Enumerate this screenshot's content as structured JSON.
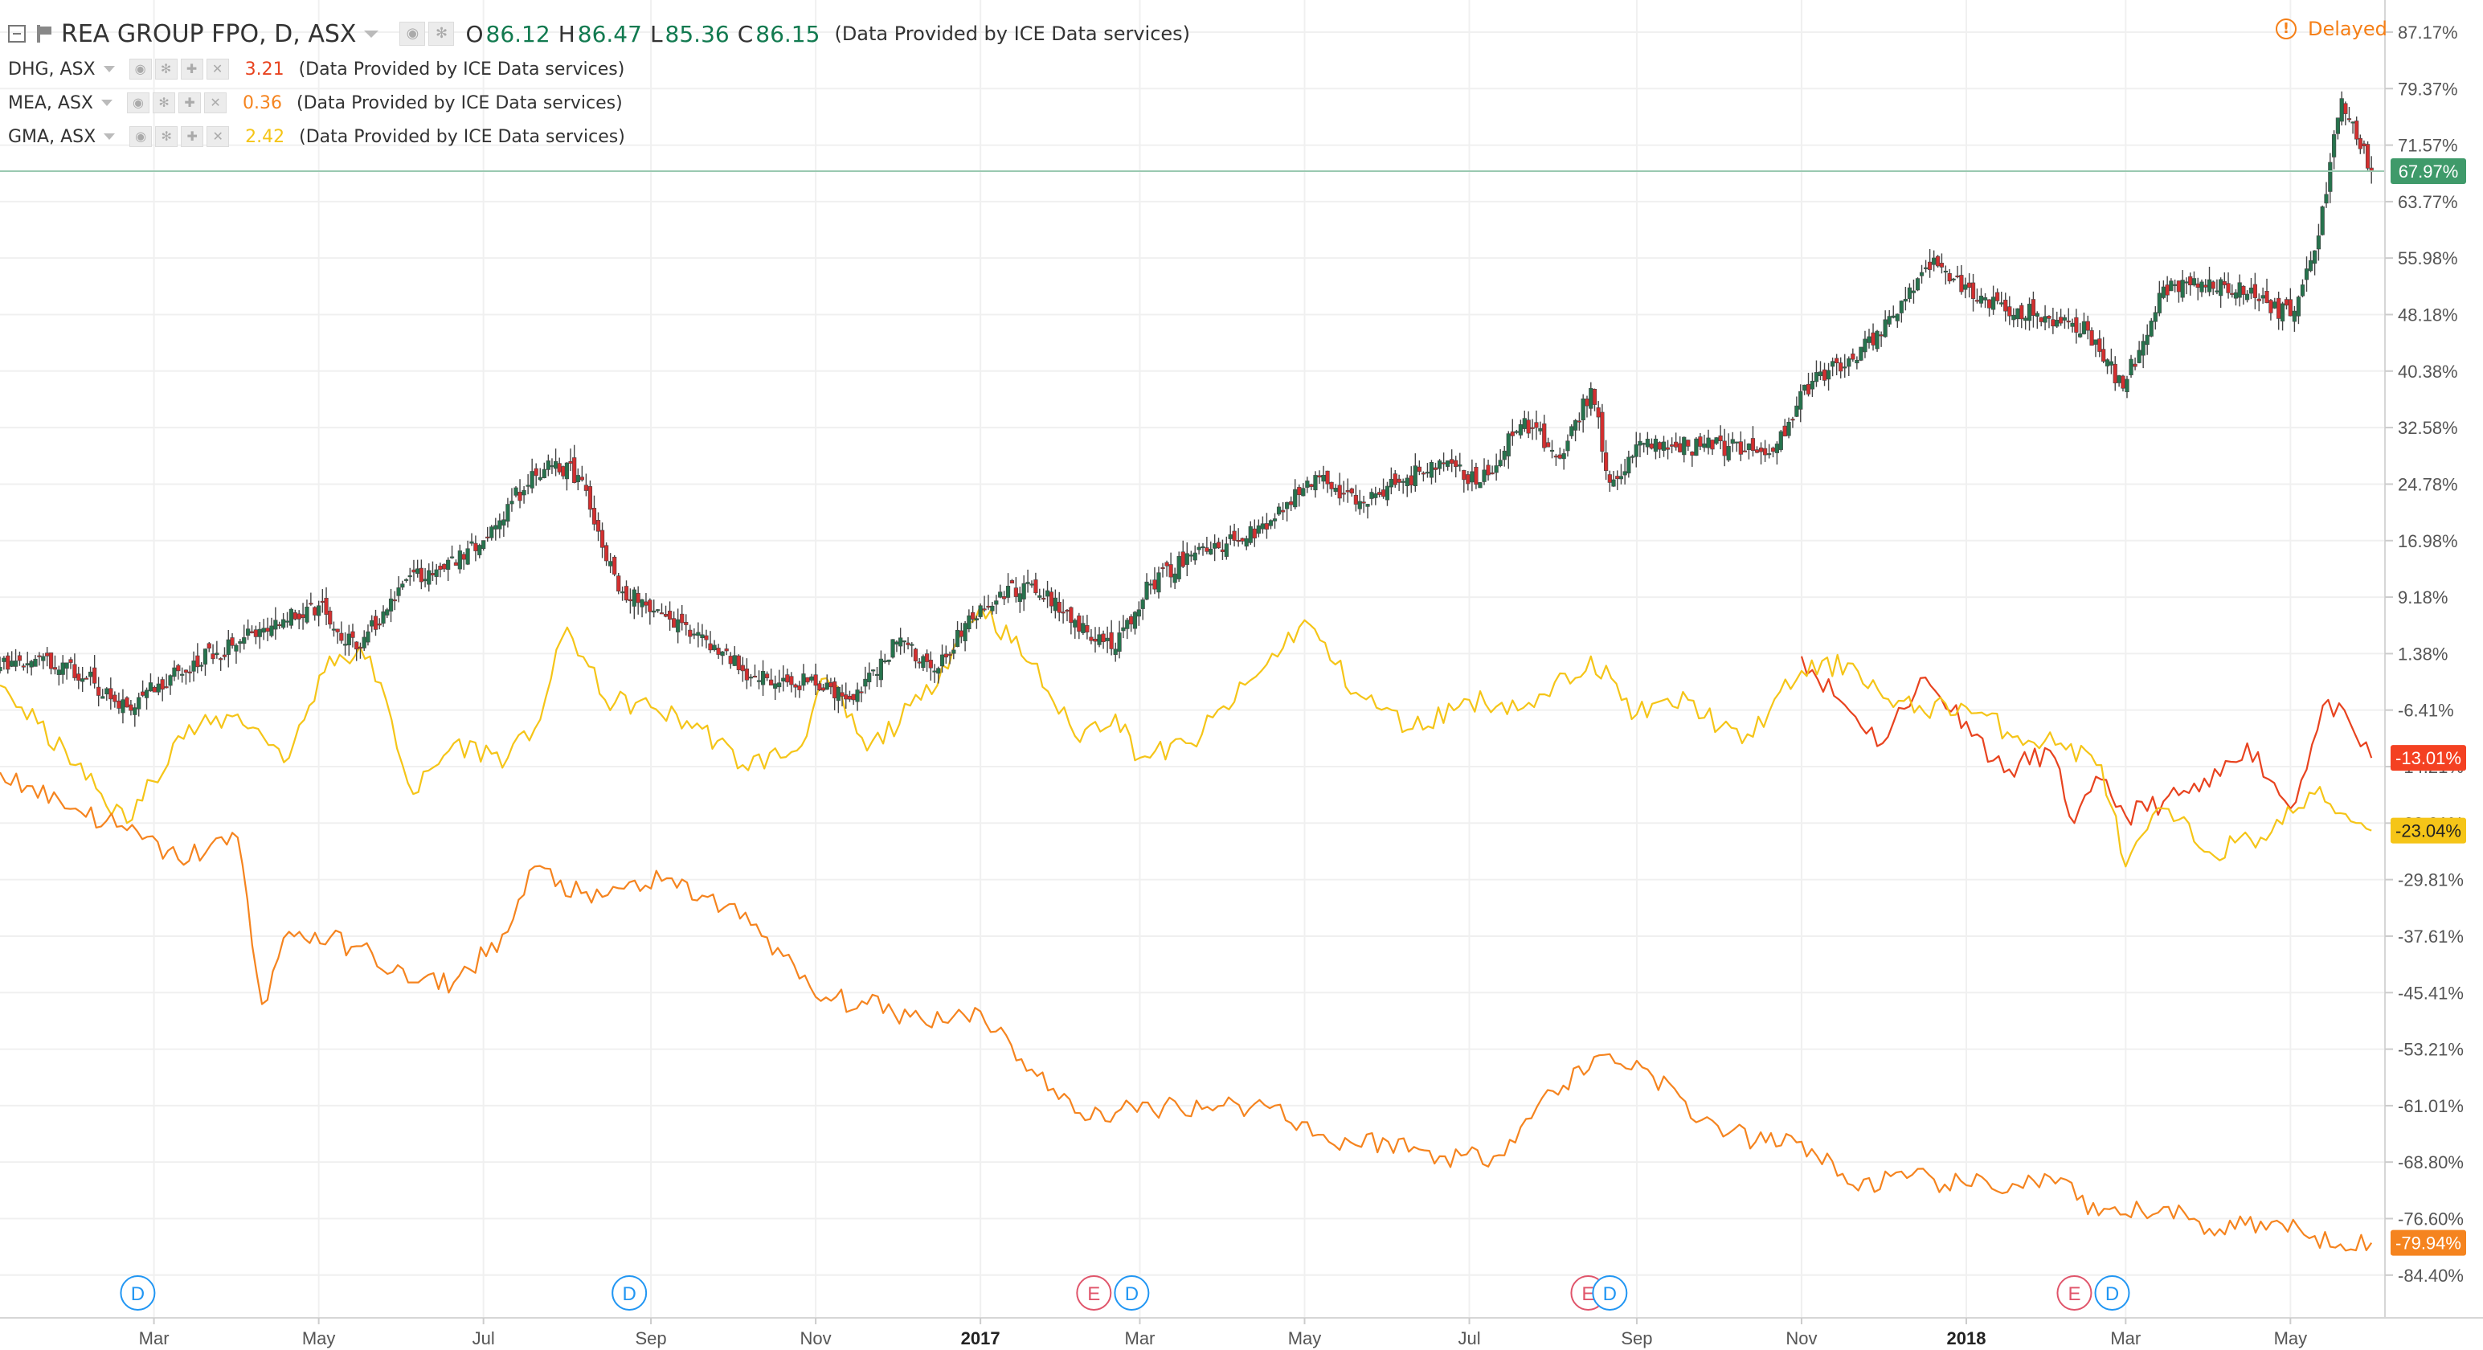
{
  "header": {
    "title": "REA GROUP FPO, D, ASX",
    "ohlc": [
      {
        "label": "O",
        "value": "86.12"
      },
      {
        "label": "H",
        "value": "86.47"
      },
      {
        "label": "L",
        "value": "85.36"
      },
      {
        "label": "C",
        "value": "86.15"
      }
    ],
    "provider": "(Data Provided by ICE Data services)",
    "delayed": "Delayed"
  },
  "comparisons": [
    {
      "name": "DHG, ASX",
      "value": "3.21",
      "color": "#e8431f",
      "provider": "(Data Provided by ICE Data services)"
    },
    {
      "name": "MEA, ASX",
      "value": "0.36",
      "color": "#f5841f",
      "provider": "(Data Provided by ICE Data services)"
    },
    {
      "name": "GMA, ASX",
      "value": "2.42",
      "color": "#f5c518",
      "provider": "(Data Provided by ICE Data services)"
    }
  ],
  "colors": {
    "up": "#26734d",
    "down": "#d32f2f",
    "wick": "#444444",
    "grid": "#f0f0f0",
    "axis_text": "#555555",
    "rea_badge": "#3f9a6a",
    "dividend": "#2196f3",
    "earnings": "#e0556b"
  },
  "chart_data": {
    "type": "line",
    "yaxis_ticks": [
      "87.17%",
      "79.37%",
      "71.57%",
      "63.77%",
      "55.98%",
      "48.18%",
      "40.38%",
      "32.58%",
      "24.78%",
      "16.98%",
      "9.18%",
      "1.38%",
      "-6.41%",
      "-14.21%",
      "-22.01%",
      "-29.81%",
      "-37.61%",
      "-45.41%",
      "-53.21%",
      "-61.01%",
      "-68.80%",
      "-76.60%",
      "-84.40%"
    ],
    "ylim": [
      -90.3,
      91.6
    ],
    "xaxis_ticks": [
      {
        "label": "Mar",
        "date": "2016-03-01"
      },
      {
        "label": "May",
        "date": "2016-05-01"
      },
      {
        "label": "Jul",
        "date": "2016-07-01"
      },
      {
        "label": "Sep",
        "date": "2016-09-01"
      },
      {
        "label": "Nov",
        "date": "2016-11-01"
      },
      {
        "label": "2017",
        "date": "2017-01-01"
      },
      {
        "label": "Mar",
        "date": "2017-03-01"
      },
      {
        "label": "May",
        "date": "2017-05-01"
      },
      {
        "label": "Jul",
        "date": "2017-07-01"
      },
      {
        "label": "Sep",
        "date": "2017-09-01"
      },
      {
        "label": "Nov",
        "date": "2017-11-01"
      },
      {
        "label": "2018",
        "date": "2018-01-01"
      },
      {
        "label": "Mar",
        "date": "2018-03-01"
      },
      {
        "label": "May",
        "date": "2018-05-01"
      }
    ],
    "xlim": [
      "2016-01-04",
      "2018-06-05"
    ],
    "badges": [
      {
        "series": "REA GROUP FPO",
        "text": "67.97%",
        "value": 67.97
      },
      {
        "series": "DHG, ASX",
        "text": "-13.01%",
        "value": -13.01
      },
      {
        "series": "GMA, ASX",
        "text": "-23.04%",
        "value": -23.04
      },
      {
        "series": "MEA, ASX",
        "text": "-79.94%",
        "value": -79.94
      }
    ],
    "events": [
      {
        "type": "dividend",
        "label": "D",
        "date": "2016-02-24"
      },
      {
        "type": "dividend",
        "label": "D",
        "date": "2016-08-24"
      },
      {
        "type": "earnings",
        "label": "E",
        "date": "2017-02-12"
      },
      {
        "type": "dividend",
        "label": "D",
        "date": "2017-02-26"
      },
      {
        "type": "earnings",
        "label": "E",
        "date": "2017-08-14"
      },
      {
        "type": "dividend",
        "label": "D",
        "date": "2017-08-22"
      },
      {
        "type": "earnings",
        "label": "E",
        "date": "2018-02-10"
      },
      {
        "type": "dividend",
        "label": "D",
        "date": "2018-02-24"
      }
    ],
    "series": [
      {
        "name": "REA GROUP FPO",
        "style": "candles",
        "x": [
          "2016-01-04",
          "2016-01-20",
          "2016-02-05",
          "2016-02-20",
          "2016-03-10",
          "2016-03-30",
          "2016-04-15",
          "2016-05-01",
          "2016-05-15",
          "2016-06-01",
          "2016-06-15",
          "2016-07-01",
          "2016-07-10",
          "2016-07-25",
          "2016-08-05",
          "2016-08-20",
          "2016-09-05",
          "2016-09-20",
          "2016-10-05",
          "2016-10-20",
          "2016-11-01",
          "2016-11-15",
          "2016-12-01",
          "2016-12-15",
          "2017-01-01",
          "2017-01-20",
          "2017-02-05",
          "2017-02-20",
          "2017-03-05",
          "2017-03-20",
          "2017-04-05",
          "2017-04-20",
          "2017-05-05",
          "2017-05-20",
          "2017-06-05",
          "2017-06-20",
          "2017-07-05",
          "2017-07-20",
          "2017-08-05",
          "2017-08-15",
          "2017-08-22",
          "2017-09-05",
          "2017-09-20",
          "2017-10-05",
          "2017-10-20",
          "2017-11-05",
          "2017-11-20",
          "2017-12-05",
          "2017-12-20",
          "2018-01-05",
          "2018-01-20",
          "2018-02-05",
          "2018-02-15",
          "2018-02-28",
          "2018-03-15",
          "2018-04-01",
          "2018-04-15",
          "2018-05-01",
          "2018-05-10",
          "2018-05-20",
          "2018-05-31"
        ],
        "y": [
          -0.5,
          1,
          -2,
          -6,
          -1,
          2.5,
          6,
          8,
          2,
          11,
          13,
          17,
          22,
          28,
          26,
          10,
          7,
          4,
          -1,
          -2,
          -3,
          -5,
          3,
          -1,
          8,
          11,
          6,
          2,
          11,
          15,
          17,
          20,
          26,
          22,
          25,
          28,
          25,
          33,
          29,
          38,
          25,
          31,
          30,
          30,
          29,
          39,
          42,
          48,
          56,
          50,
          49,
          47,
          46,
          38,
          52,
          53,
          51,
          48,
          57,
          78,
          67.97
        ]
      },
      {
        "name": "DHG, ASX",
        "style": "line",
        "x": [
          "2017-11-01",
          "2017-11-15",
          "2017-12-01",
          "2017-12-15",
          "2018-01-01",
          "2018-01-15",
          "2018-02-01",
          "2018-02-10",
          "2018-02-20",
          "2018-03-01",
          "2018-03-15",
          "2018-04-01",
          "2018-04-15",
          "2018-05-01",
          "2018-05-15",
          "2018-05-31"
        ],
        "y": [
          1,
          -5,
          -11,
          -2,
          -8,
          -15,
          -12,
          -22,
          -16,
          -21,
          -19,
          -17,
          -11,
          -20,
          -5,
          -13.01
        ]
      },
      {
        "name": "GMA, ASX",
        "style": "line",
        "x": [
          "2016-01-04",
          "2016-02-01",
          "2016-02-20",
          "2016-03-10",
          "2016-04-01",
          "2016-04-20",
          "2016-05-05",
          "2016-05-20",
          "2016-06-05",
          "2016-06-20",
          "2016-07-10",
          "2016-07-20",
          "2016-08-01",
          "2016-08-15",
          "2016-09-01",
          "2016-09-20",
          "2016-10-05",
          "2016-10-25",
          "2016-11-05",
          "2016-11-20",
          "2016-12-10",
          "2017-01-01",
          "2017-01-20",
          "2017-02-05",
          "2017-02-20",
          "2017-03-01",
          "2017-03-20",
          "2017-04-15",
          "2017-05-01",
          "2017-05-20",
          "2017-06-10",
          "2017-07-01",
          "2017-07-25",
          "2017-08-15",
          "2017-09-01",
          "2017-09-20",
          "2017-10-10",
          "2017-11-01",
          "2017-11-20",
          "2017-12-05",
          "2018-01-01",
          "2018-01-20",
          "2018-02-05",
          "2018-02-20",
          "2018-03-01",
          "2018-03-15",
          "2018-04-01",
          "2018-04-20",
          "2018-05-10",
          "2018-05-31"
        ],
        "y": [
          -3,
          -14,
          -22,
          -10,
          -7,
          -13,
          1,
          1,
          -18,
          -11,
          -13,
          -9,
          5,
          -5,
          -6,
          -9,
          -14,
          -12,
          -2,
          -12,
          -5,
          8,
          0,
          -10,
          -7,
          -13,
          -11,
          -1,
          6,
          -4,
          -9,
          -5,
          -6,
          1,
          -7,
          -5,
          -11,
          -1,
          0,
          -6,
          -6,
          -10,
          -11,
          -14,
          -28,
          -20,
          -26,
          -24,
          -18,
          -23.04
        ]
      },
      {
        "name": "MEA, ASX",
        "style": "line",
        "x": [
          "2016-01-04",
          "2016-02-01",
          "2016-02-20",
          "2016-03-10",
          "2016-04-01",
          "2016-04-10",
          "2016-04-20",
          "2016-05-15",
          "2016-06-05",
          "2016-06-20",
          "2016-07-10",
          "2016-07-20",
          "2016-08-10",
          "2016-08-20",
          "2016-09-05",
          "2016-09-20",
          "2016-10-10",
          "2016-11-01",
          "2016-11-20",
          "2016-12-10",
          "2017-01-01",
          "2017-01-20",
          "2017-02-05",
          "2017-02-20",
          "2017-03-10",
          "2017-04-01",
          "2017-04-20",
          "2017-05-10",
          "2017-06-01",
          "2017-06-20",
          "2017-07-10",
          "2017-08-01",
          "2017-08-20",
          "2017-09-05",
          "2017-09-25",
          "2017-10-15",
          "2017-11-01",
          "2017-11-20",
          "2017-12-10",
          "2018-01-01",
          "2018-01-20",
          "2018-02-05",
          "2018-02-15",
          "2018-03-01",
          "2018-03-15",
          "2018-04-01",
          "2018-04-20",
          "2018-05-10",
          "2018-05-31"
        ],
        "y": [
          -15,
          -20,
          -23,
          -27,
          -24,
          -47,
          -37,
          -39,
          -44,
          -44,
          -37,
          -28,
          -33,
          -31,
          -30,
          -32,
          -36,
          -46,
          -47,
          -49,
          -48,
          -56,
          -62,
          -62,
          -61,
          -61,
          -61,
          -66,
          -66,
          -68,
          -68,
          -59,
          -54,
          -56,
          -63,
          -66,
          -66,
          -72,
          -71,
          -72,
          -72,
          -71,
          -76,
          -76,
          -75,
          -78,
          -77,
          -79,
          -79.94
        ]
      }
    ]
  }
}
